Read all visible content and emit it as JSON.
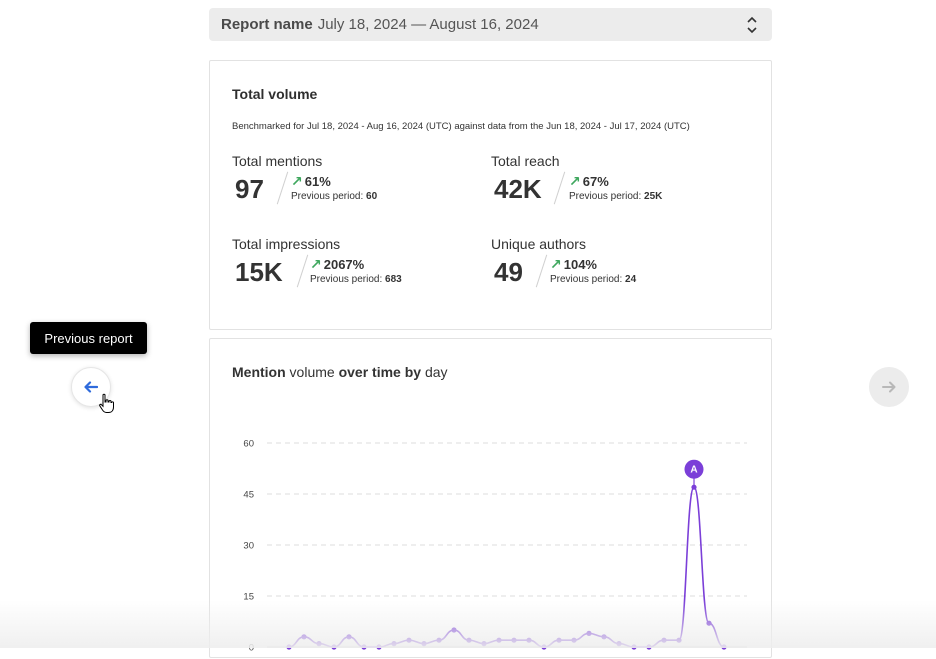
{
  "report": {
    "label": "Report name",
    "range": "July 18, 2024 — August 16, 2024"
  },
  "volume": {
    "title": "Total volume",
    "benchmark": "Benchmarked for Jul 18, 2024 - Aug 16, 2024 (UTC) against data from the Jun 18, 2024 - Jul 17, 2024 (UTC)",
    "prev_label": "Previous period:",
    "metrics": [
      {
        "label": "Total mentions",
        "value": "97",
        "change": "61%",
        "prev": "60"
      },
      {
        "label": "Total reach",
        "value": "42K",
        "change": "67%",
        "prev": "25K"
      },
      {
        "label": "Total impressions",
        "value": "15K",
        "change": "2067%",
        "prev": "683"
      },
      {
        "label": "Unique authors",
        "value": "49",
        "change": "104%",
        "prev": "24"
      }
    ]
  },
  "chart": {
    "title_part1": "Mention",
    "title_part2": " volume ",
    "title_part3": "over time by",
    "title_part4": " day"
  },
  "chart_data": {
    "type": "line",
    "title": "Mention volume over time by day",
    "ylim": [
      0,
      60
    ],
    "yticks": [
      0,
      15,
      30,
      45,
      60
    ],
    "grid": true,
    "series": [
      {
        "values": [
          0,
          3,
          1,
          0,
          3,
          0,
          0,
          1,
          2,
          1,
          2,
          5,
          2,
          1,
          2,
          2,
          2,
          0,
          2,
          2,
          4,
          3,
          1,
          0,
          0,
          2,
          2,
          47,
          7,
          0
        ]
      }
    ],
    "annotation": {
      "label": "A",
      "index": 27
    },
    "color": "#7b3fd8"
  },
  "nav": {
    "tooltip": "Previous report",
    "prev_icon": "arrow-left-icon",
    "next_icon": "arrow-right-icon",
    "prev_color": "#2f6bdc"
  }
}
